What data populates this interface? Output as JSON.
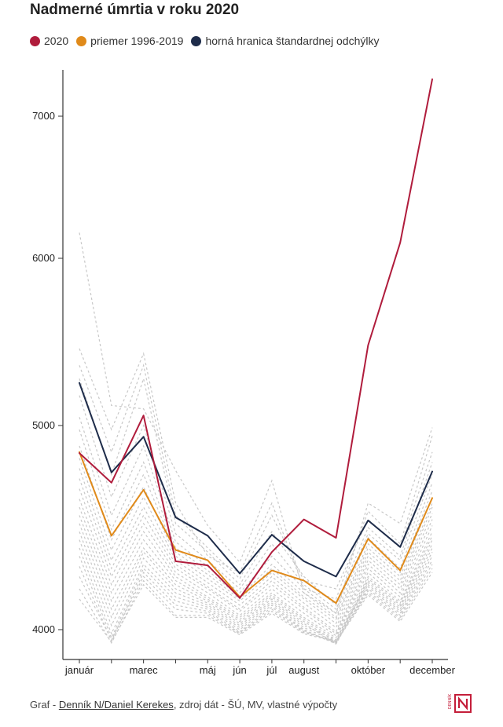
{
  "title": "Nadmerné úmrtia v roku 2020",
  "colors": {
    "series_2020": "#b01c3c",
    "series_avg": "#e08a1a",
    "series_upper": "#1e2c4a",
    "background_lines": "#c8c8c8",
    "axis": "#333333",
    "logo_red": "#c41e3a"
  },
  "legend": [
    {
      "label": "2020",
      "color": "#b01c3c"
    },
    {
      "label": "priemer 1996-2019",
      "color": "#e08a1a"
    },
    {
      "label": "horná hranica štandardnej odchýlky",
      "color": "#1e2c4a"
    }
  ],
  "chart_data": {
    "type": "line",
    "title": "Nadmerné úmrtia v roku 2020",
    "x": [
      1,
      2,
      3,
      4,
      5,
      6,
      7,
      8,
      9,
      10,
      11,
      12
    ],
    "x_tick_labels": [
      {
        "x": 1,
        "label": "január"
      },
      {
        "x": 3,
        "label": "marec"
      },
      {
        "x": 5,
        "label": "máj"
      },
      {
        "x": 6,
        "label": "jún"
      },
      {
        "x": 7,
        "label": "júl"
      },
      {
        "x": 8,
        "label": "august"
      },
      {
        "x": 10,
        "label": "október"
      },
      {
        "x": 12,
        "label": "december"
      }
    ],
    "y_ticks": [
      4000,
      5000,
      6000,
      7000
    ],
    "ylim": [
      3930,
      7270
    ],
    "grid": false,
    "legend_position": "top",
    "series": [
      {
        "name": "2020",
        "color": "#b01c3c",
        "values": [
          4865,
          4720,
          5060,
          4335,
          4315,
          4155,
          4380,
          4540,
          4450,
          5480,
          6110,
          7260
        ]
      },
      {
        "name": "priemer 1996-2019",
        "color": "#e08a1a",
        "values": [
          4870,
          4460,
          4685,
          4390,
          4340,
          4160,
          4290,
          4240,
          4130,
          4445,
          4290,
          4645
        ]
      },
      {
        "name": "horná hranica štandardnej odchýlky",
        "color": "#1e2c4a",
        "values": [
          5255,
          4770,
          4945,
          4550,
          4460,
          4275,
          4465,
          4335,
          4260,
          4535,
          4405,
          4775
        ]
      }
    ],
    "background_years": [
      [
        6180,
        5120,
        5100,
        4780,
        4510,
        4330,
        4730,
        4180,
        4080,
        4620,
        4520,
        4990
      ],
      [
        5460,
        4980,
        5430,
        4620,
        4360,
        4280,
        4620,
        4200,
        4150,
        4580,
        4420,
        4950
      ],
      [
        5360,
        4870,
        5360,
        4560,
        4400,
        4250,
        4560,
        4240,
        4200,
        4540,
        4400,
        4870
      ],
      [
        5280,
        4760,
        5280,
        4520,
        4380,
        4220,
        4480,
        4260,
        4120,
        4500,
        4360,
        4820
      ],
      [
        5180,
        4650,
        5000,
        4470,
        4340,
        4200,
        4420,
        4220,
        4100,
        4470,
        4340,
        4760
      ],
      [
        5050,
        4560,
        4900,
        4430,
        4310,
        4180,
        4360,
        4200,
        4080,
        4450,
        4300,
        4720
      ],
      [
        4980,
        4490,
        4820,
        4400,
        4290,
        4160,
        4320,
        4180,
        4060,
        4420,
        4280,
        4680
      ],
      [
        4900,
        4440,
        4760,
        4380,
        4270,
        4150,
        4300,
        4160,
        4050,
        4400,
        4260,
        4650
      ],
      [
        4840,
        4390,
        4700,
        4360,
        4250,
        4140,
        4280,
        4150,
        4030,
        4380,
        4240,
        4620
      ],
      [
        4790,
        4340,
        4650,
        4340,
        4230,
        4120,
        4260,
        4130,
        4010,
        4360,
        4220,
        4600
      ],
      [
        4740,
        4300,
        4600,
        4320,
        4210,
        4100,
        4240,
        4110,
        3990,
        4340,
        4200,
        4570
      ],
      [
        4690,
        4260,
        4560,
        4300,
        4200,
        4090,
        4220,
        4100,
        3980,
        4320,
        4180,
        4540
      ],
      [
        4640,
        4220,
        4520,
        4280,
        4180,
        4070,
        4200,
        4080,
        3970,
        4300,
        4160,
        4510
      ],
      [
        4600,
        4180,
        4480,
        4260,
        4160,
        4060,
        4180,
        4060,
        3960,
        4280,
        4140,
        4480
      ],
      [
        4560,
        4140,
        4440,
        4240,
        4150,
        4050,
        4170,
        4050,
        3950,
        4260,
        4130,
        4460
      ],
      [
        4520,
        4100,
        4400,
        4220,
        4140,
        4040,
        4160,
        4040,
        3940,
        4250,
        4120,
        4440
      ],
      [
        4480,
        4060,
        4380,
        4200,
        4130,
        4030,
        4150,
        4030,
        3930,
        4240,
        4110,
        4420
      ],
      [
        4440,
        4020,
        4350,
        4180,
        4120,
        4020,
        4140,
        4020,
        3950,
        4230,
        4100,
        4400
      ],
      [
        4400,
        3980,
        4320,
        4160,
        4110,
        4010,
        4130,
        4010,
        3940,
        4220,
        4090,
        4380
      ],
      [
        4360,
        3960,
        4300,
        4140,
        4100,
        4000,
        4120,
        4000,
        3930,
        4210,
        4080,
        4360
      ],
      [
        4310,
        3945,
        4280,
        4120,
        4090,
        3990,
        4110,
        3995,
        3935,
        4200,
        4070,
        4340
      ],
      [
        4260,
        3950,
        4260,
        4100,
        4080,
        3985,
        4100,
        3990,
        3940,
        4190,
        4060,
        4320
      ],
      [
        4200,
        3935,
        4240,
        4070,
        4070,
        3980,
        4090,
        3985,
        3945,
        4180,
        4050,
        4300
      ],
      [
        4150,
        3940,
        4220,
        4060,
        4060,
        3975,
        4080,
        3980,
        3940,
        4170,
        4040,
        4280
      ]
    ]
  },
  "footer": {
    "prefix": "Graf - ",
    "author_link": "Denník N/Daniel Kerekes",
    "suffix": ", zdroj dát - ŠÚ, MV, vlastné výpočty"
  },
  "logo": {
    "letter": "N",
    "side_text": "DENNÍK"
  }
}
